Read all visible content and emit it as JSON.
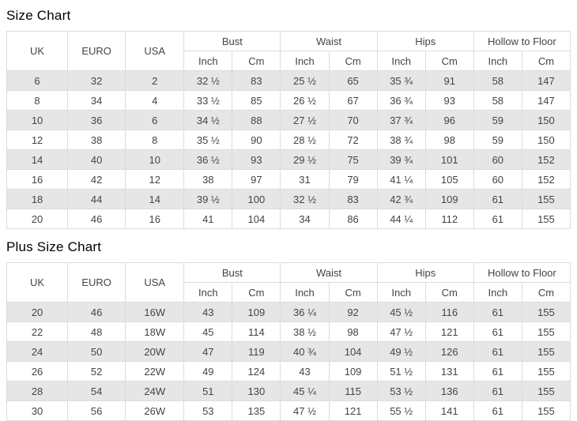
{
  "colors": {
    "stripe": "#e6e6e6",
    "border": "#dcdcdc",
    "text": "#444444",
    "title": "#000000"
  },
  "columns": {
    "uk": "UK",
    "euro": "EURO",
    "usa": "USA",
    "bust": "Bust",
    "waist": "Waist",
    "hips": "Hips",
    "hollow": "Hollow to Floor",
    "inch": "Inch",
    "cm": "Cm"
  },
  "size_chart": {
    "title": "Size Chart",
    "rows": [
      [
        "6",
        "32",
        "2",
        "32 ½",
        "83",
        "25 ½",
        "65",
        "35 ¾",
        "91",
        "58",
        "147"
      ],
      [
        "8",
        "34",
        "4",
        "33 ½",
        "85",
        "26 ½",
        "67",
        "36 ¾",
        "93",
        "58",
        "147"
      ],
      [
        "10",
        "36",
        "6",
        "34 ½",
        "88",
        "27 ½",
        "70",
        "37 ¾",
        "96",
        "59",
        "150"
      ],
      [
        "12",
        "38",
        "8",
        "35 ½",
        "90",
        "28 ½",
        "72",
        "38 ¾",
        "98",
        "59",
        "150"
      ],
      [
        "14",
        "40",
        "10",
        "36 ½",
        "93",
        "29 ½",
        "75",
        "39 ¾",
        "101",
        "60",
        "152"
      ],
      [
        "16",
        "42",
        "12",
        "38",
        "97",
        "31",
        "79",
        "41 ¼",
        "105",
        "60",
        "152"
      ],
      [
        "18",
        "44",
        "14",
        "39 ½",
        "100",
        "32 ½",
        "83",
        "42 ¾",
        "109",
        "61",
        "155"
      ],
      [
        "20",
        "46",
        "16",
        "41",
        "104",
        "34",
        "86",
        "44 ¼",
        "112",
        "61",
        "155"
      ]
    ]
  },
  "plus_size_chart": {
    "title": "Plus Size Chart",
    "rows": [
      [
        "20",
        "46",
        "16W",
        "43",
        "109",
        "36 ¼",
        "92",
        "45 ½",
        "116",
        "61",
        "155"
      ],
      [
        "22",
        "48",
        "18W",
        "45",
        "114",
        "38 ½",
        "98",
        "47 ½",
        "121",
        "61",
        "155"
      ],
      [
        "24",
        "50",
        "20W",
        "47",
        "119",
        "40 ¾",
        "104",
        "49 ½",
        "126",
        "61",
        "155"
      ],
      [
        "26",
        "52",
        "22W",
        "49",
        "124",
        "43",
        "109",
        "51 ½",
        "131",
        "61",
        "155"
      ],
      [
        "28",
        "54",
        "24W",
        "51",
        "130",
        "45 ¼",
        "115",
        "53 ½",
        "136",
        "61",
        "155"
      ],
      [
        "30",
        "56",
        "26W",
        "53",
        "135",
        "47 ½",
        "121",
        "55 ½",
        "141",
        "61",
        "155"
      ]
    ]
  }
}
